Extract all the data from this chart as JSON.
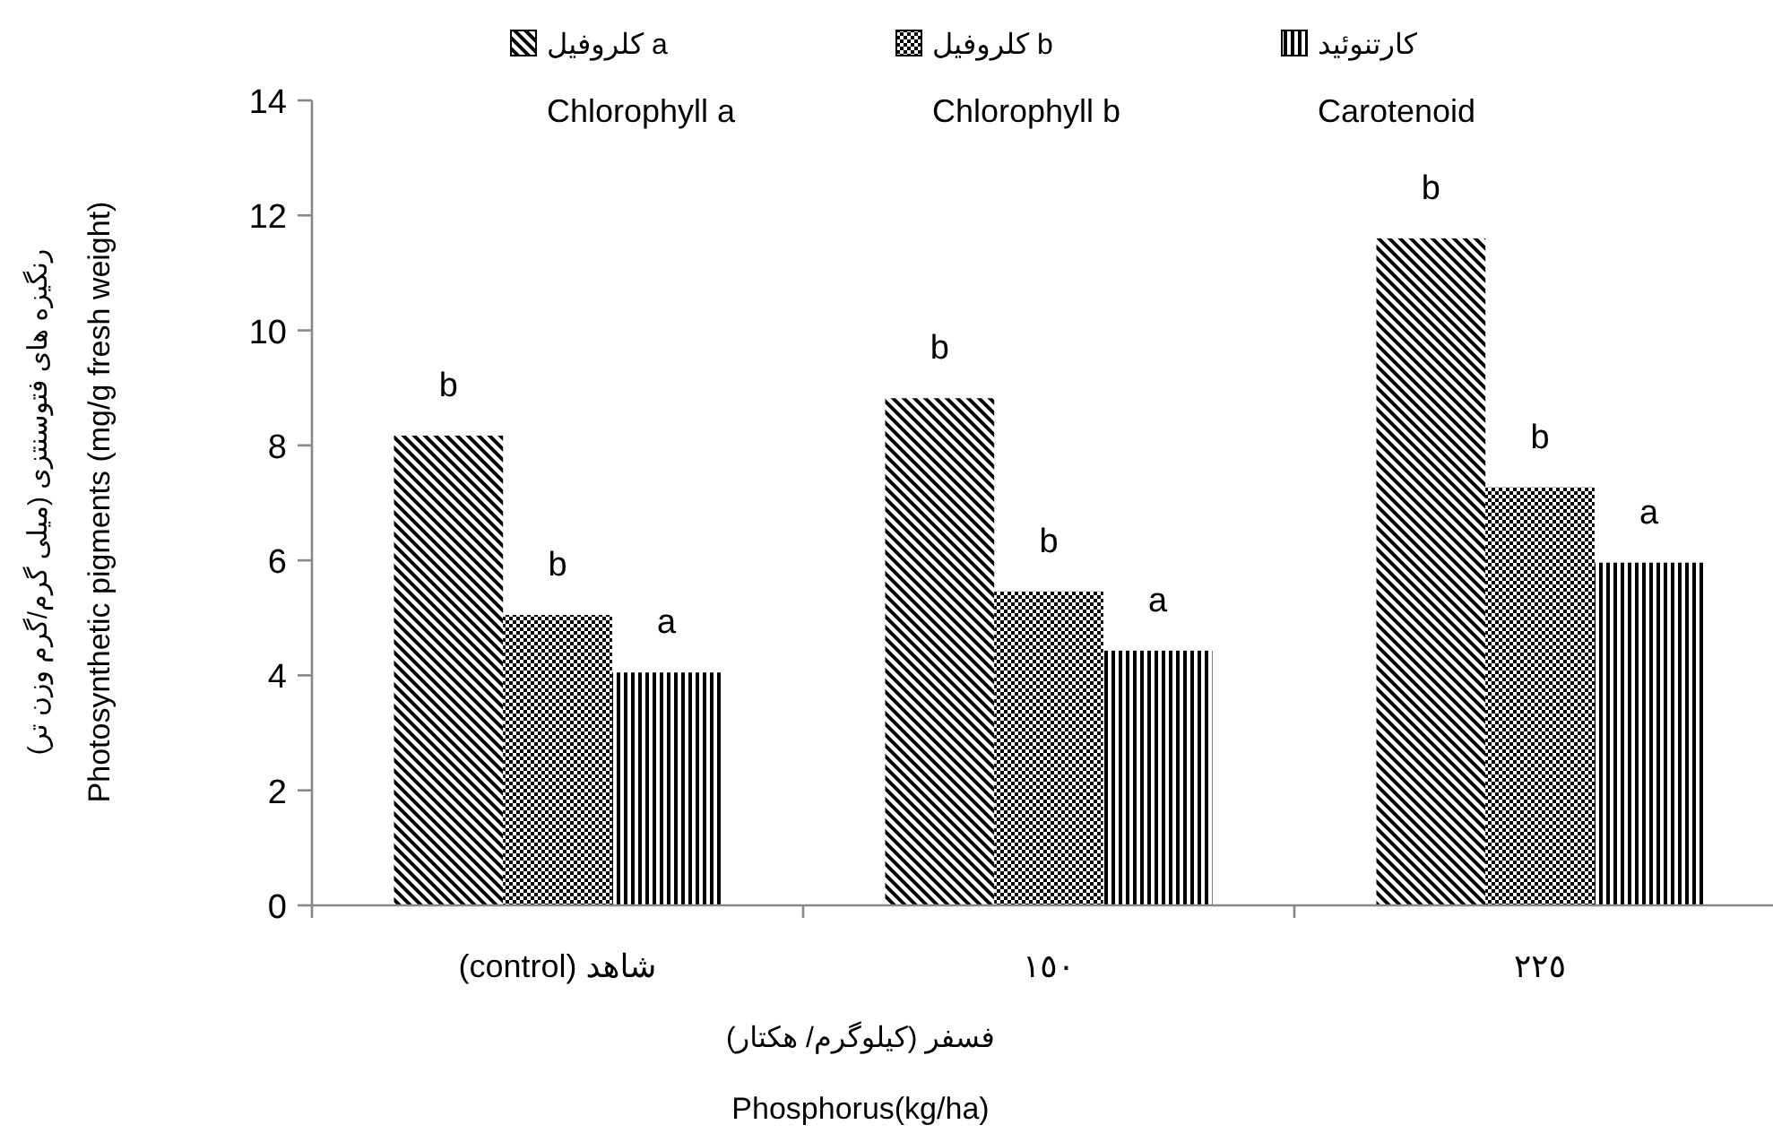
{
  "chart_data": {
    "type": "bar",
    "categories": [
      "(control) شاهد",
      "١٥٠",
      "٢٢٥"
    ],
    "series": [
      {
        "name": "کلروفیل a\nChlorophyll a",
        "color": "#000000",
        "values": [
          8.17,
          8.82,
          11.6
        ],
        "value_labels": [
          "b",
          "b",
          "b"
        ]
      },
      {
        "name": "کلروفیل b\nChlorophyll b",
        "color": "#000000",
        "values": [
          5.05,
          5.46,
          7.27
        ],
        "value_labels": [
          "b",
          "b",
          "b"
        ]
      },
      {
        "name": "کارتنوئید\nCarotenoid",
        "color": "#000000",
        "values": [
          4.05,
          4.43,
          5.96
        ],
        "value_labels": [
          "a",
          "a",
          "a"
        ]
      }
    ],
    "ylim": [
      0,
      14
    ],
    "yticks": [
      0,
      2,
      4,
      6,
      8,
      10,
      12,
      14
    ],
    "ylabel": "رنگیزه های فتوسنتزی  (میلی گرم/گرم وزن تر)\nPhotosynthetic pigments (mg/g fresh weight)",
    "xlabel": "فسفر (کیلوگرم/ هکتار)\nPhosphorus(kg/ha)",
    "legend": "top",
    "grid": false
  }
}
